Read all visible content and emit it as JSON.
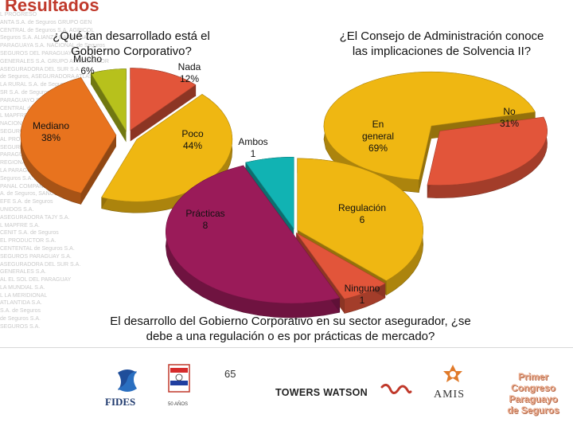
{
  "slide": {
    "title": "Resultados",
    "page_number": "65"
  },
  "background_text_lines": [
    "L PROGRESO",
    "ANTA S.A. de Seguros GRUPO GEN",
    "CENTRAL de Seguros S.A. AGRICOL",
    "Seguros S.A. ALIANZA GARANTIA",
    "PARAGUAYA S.A. NACIONAL de Seguros",
    "SEGUROS DEL PARAGUAY S.A.",
    "GENERALES S.A. GRUPO ASEGURADOR",
    "ASEGURADORA DEL SUR S.A.",
    "de Seguros, ASEGURADORA ATLAS S.A.",
    "LA RURAL S.A. de Seguros",
    "SR S.A. de Seguros, GRUPO GEN",
    "PARAGUAYO S.A.",
    "CENTRAL de Seguros S.A.",
    "L MAPFRE PARAGUAY S.A.",
    "NACIONAL de Seguros S.A.",
    "SEGUROS DEL SUR S.A.",
    "AL PROGRESO S.A.",
    "SEGURIDAD S.A.",
    "PARAGUAYO S.A.",
    "REGIONAL S.A.",
    "LA PARAGUAYA S.A.",
    "Seguros S.A. ATLAS",
    "PANAL COMPAÑIA",
    "A. de Seguros, SANCOR",
    "EFE S.A. de Seguros",
    "UNIDOS S.A.",
    "ASEGURADORA TAJY S.A.",
    "L MAPFRE S.A.",
    "CENIT S.A. de Seguros",
    "EL PRODUCTOR S.A.",
    "CENTENTAL de Seguros S.A.",
    "SEGUROS PARAGUAY S.A.",
    "ASEGURADORA DEL SUR S.A.",
    "GENERALES S.A.",
    "AL EL SOL DEL PARAGUAY",
    "LA MUNDIAL S.A.",
    "L LA MERIDIONAL",
    "ATLANTIDA S.A.",
    "S.A. de Seguros",
    "de Seguros S.A.",
    "SEGUROS S.A."
  ],
  "chart_data": [
    {
      "type": "pie",
      "title": "¿Qué tan desarrollado está el Gobierno Corporativo?",
      "categories": [
        "Nada",
        "Poco",
        "Mediano",
        "Mucho"
      ],
      "values": [
        12,
        44,
        38,
        6
      ],
      "value_unit": "%",
      "colors": [
        "#e2553a",
        "#efb712",
        "#e8731e",
        "#b7c11c"
      ],
      "labels": [
        "Nada\n12%",
        "Poco\n44%",
        "Mediano\n38%",
        "Mucho\n6%"
      ],
      "style": "3d-exploded"
    },
    {
      "type": "pie",
      "title": "¿El Consejo de Administración conoce las implicaciones de Solvencia II?",
      "categories": [
        "No",
        "En general"
      ],
      "values": [
        31,
        69
      ],
      "value_unit": "%",
      "colors": [
        "#e2553a",
        "#efb712"
      ],
      "labels": [
        "No\n31%",
        "En\ngeneral\n69%"
      ],
      "style": "3d-exploded"
    },
    {
      "type": "pie",
      "title": "El desarrollo del Gobierno Corporativo en su sector asegurador, ¿se debe a una regulación o es por prácticas de mercado?",
      "categories": [
        "Regulación",
        "Ninguno",
        "Prácticas",
        "Ambos"
      ],
      "values": [
        6,
        1,
        8,
        1
      ],
      "colors": [
        "#efb712",
        "#e2553a",
        "#9a1b59",
        "#11b3b3"
      ],
      "labels": [
        "Regulación\n6",
        "Ninguno\n1",
        "Prácticas\n8",
        "Ambos\n1"
      ],
      "style": "3d"
    }
  ],
  "logos": {
    "fides": "FIDES",
    "anniversary": "50 AÑOS",
    "towers_watson": "TOWERS WATSON",
    "amis": "AMIS",
    "congreso": [
      "Primer",
      "Congreso",
      "Paraguayo",
      "de Seguros"
    ]
  }
}
